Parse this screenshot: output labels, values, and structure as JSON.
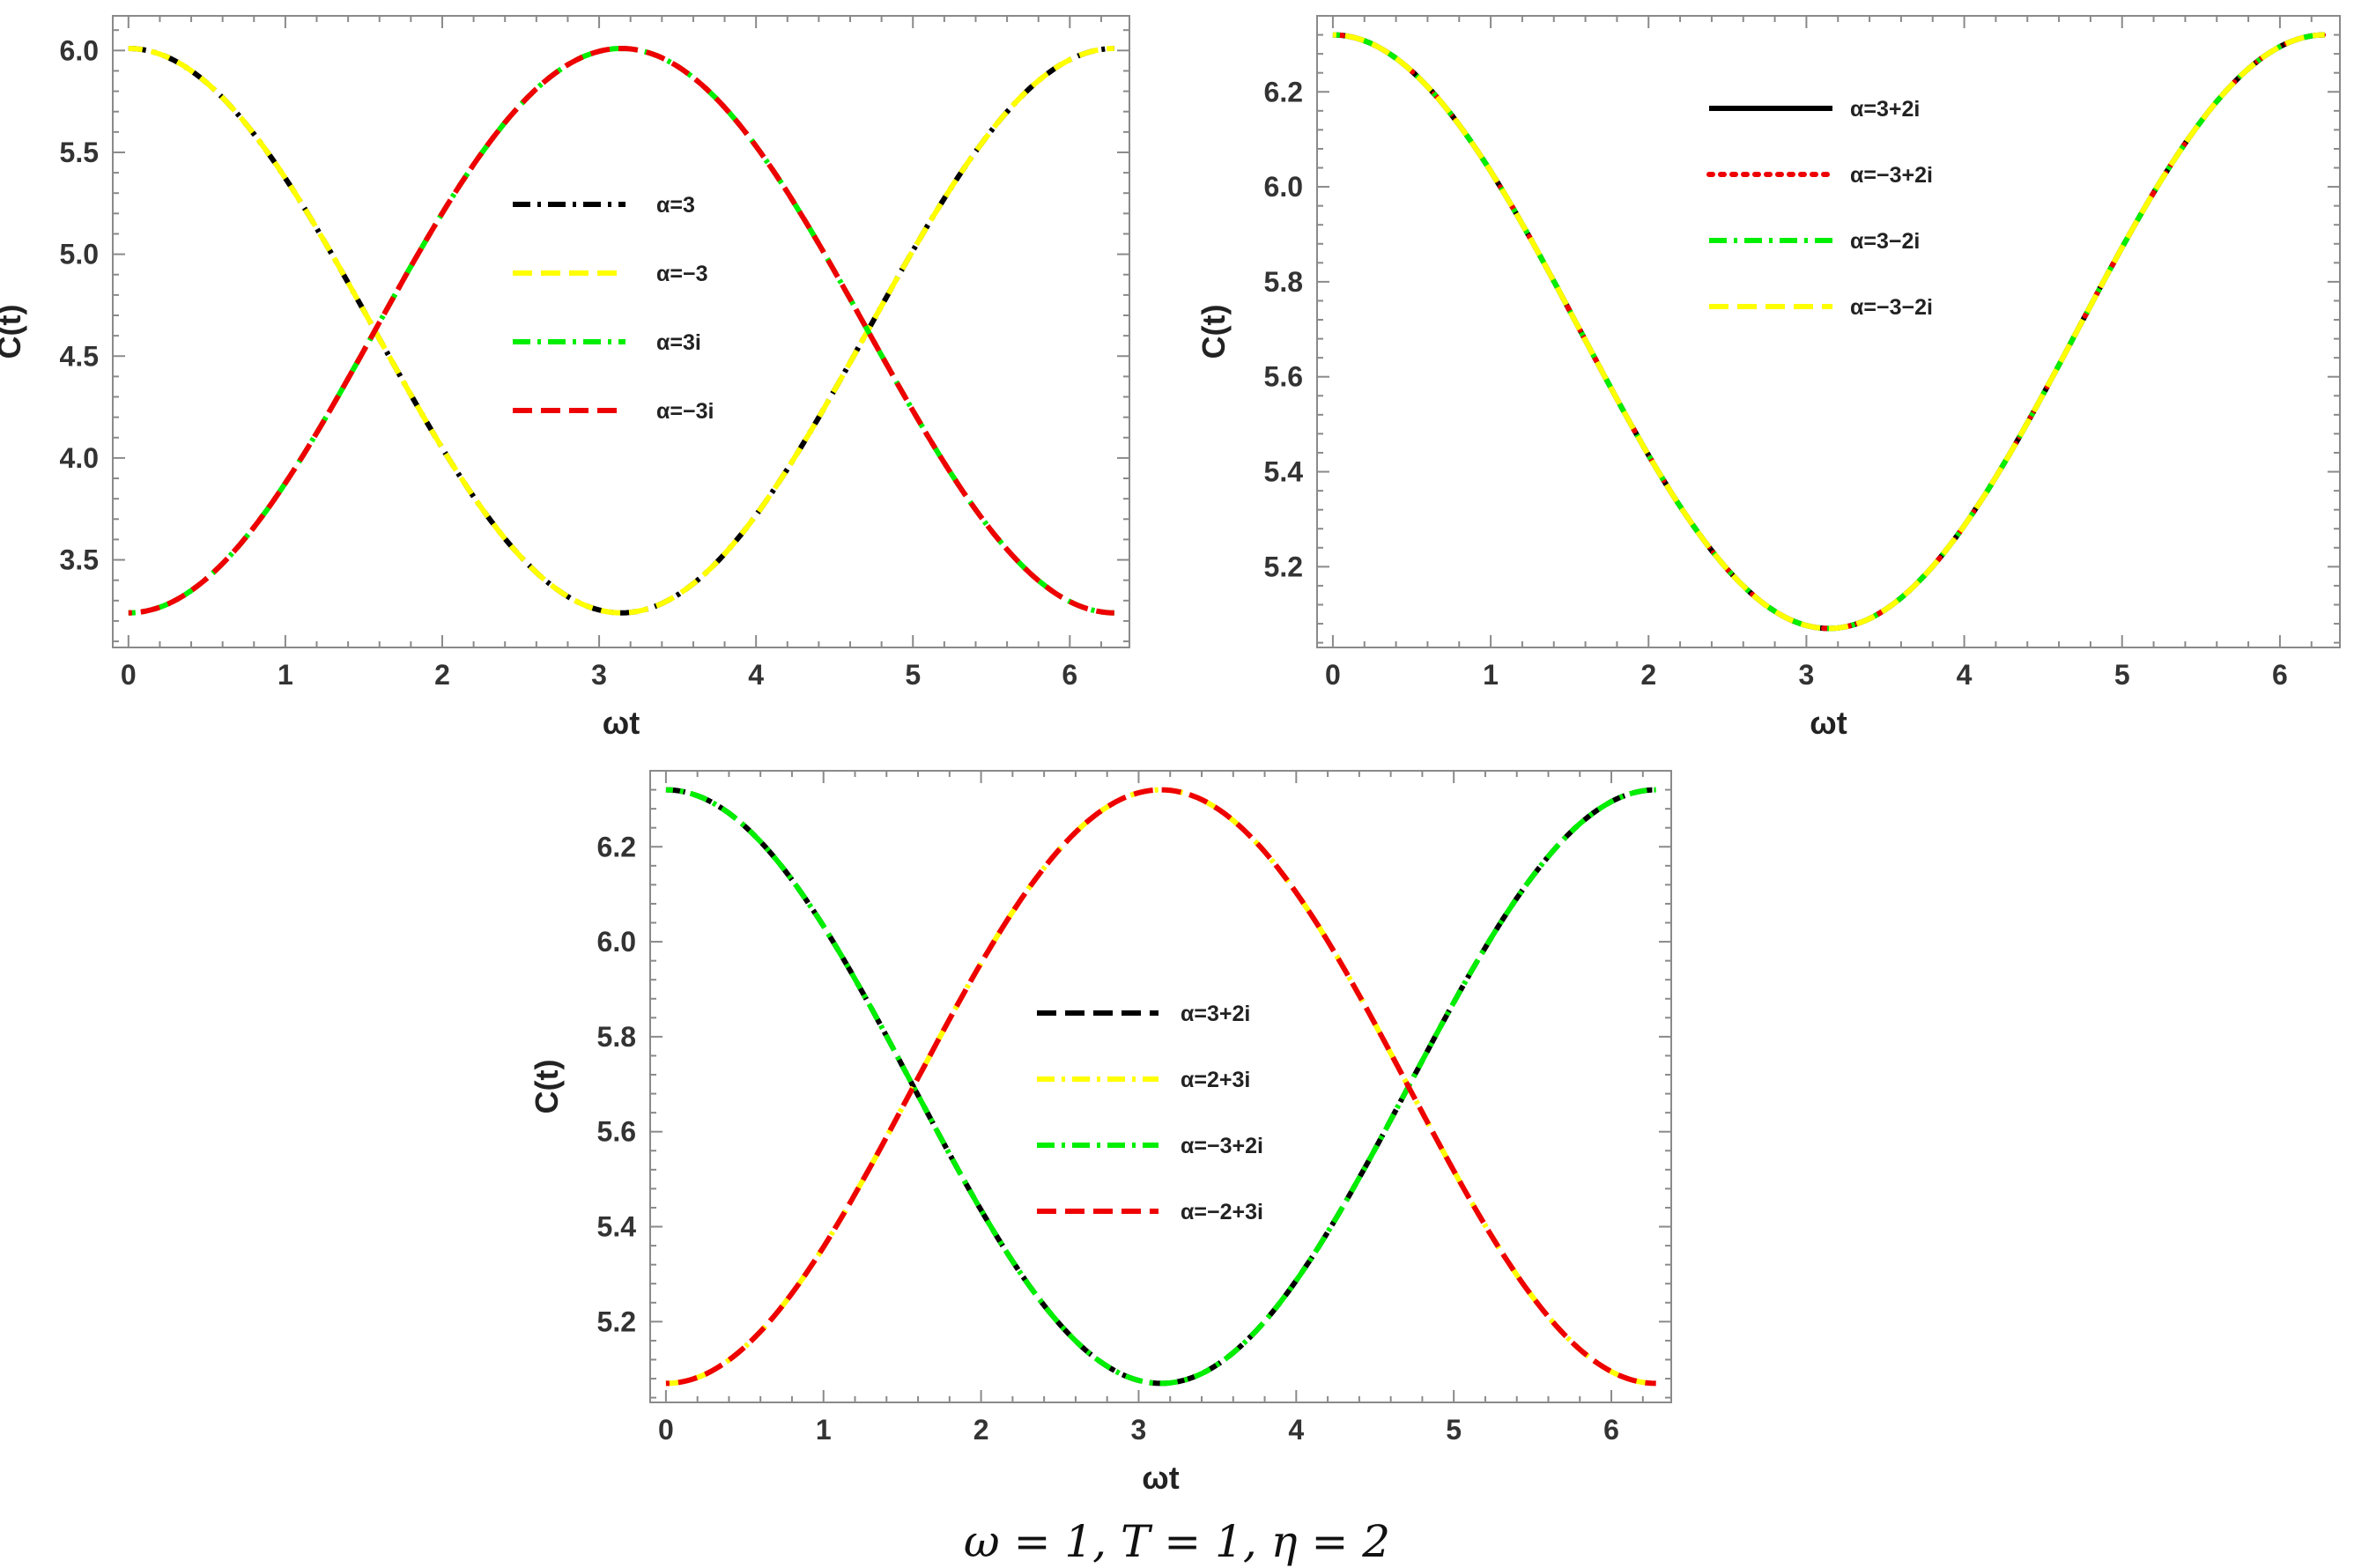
{
  "caption": "ω = 1, T = 1, η = 2",
  "chart_data": [
    {
      "type": "line",
      "title": "",
      "xlabel": "ωt",
      "ylabel": "C(t)",
      "xlim": [
        -0.1,
        6.38
      ],
      "ylim": [
        3.07,
        6.17
      ],
      "xticks": [
        0,
        1,
        2,
        3,
        4,
        5,
        6
      ],
      "yticks": [
        3.5,
        4.0,
        4.5,
        5.0,
        5.5,
        6.0
      ],
      "ytick_labels": [
        "3.5",
        "4.0",
        "4.5",
        "5.0",
        "5.5",
        "6.0"
      ],
      "legend_position": "center",
      "curve": {
        "mean": 4.625,
        "amplitude": 1.385
      },
      "series": [
        {
          "name": "α=3",
          "color": "#000000",
          "dash": "dashdot",
          "phase": "cos"
        },
        {
          "name": "α=−3",
          "color": "#ffff00",
          "dash": "dashed",
          "phase": "cos"
        },
        {
          "name": "α=3i",
          "color": "#00ee00",
          "dash": "dashdot",
          "phase": "negcos"
        },
        {
          "name": "α=−3i",
          "color": "#ee0000",
          "dash": "dashed",
          "phase": "negcos"
        }
      ]
    },
    {
      "type": "line",
      "title": "",
      "xlabel": "ωt",
      "ylabel": "C(t)",
      "xlim": [
        -0.1,
        6.38
      ],
      "ylim": [
        5.03,
        6.36
      ],
      "xticks": [
        0,
        1,
        2,
        3,
        4,
        5,
        6
      ],
      "yticks": [
        5.2,
        5.4,
        5.6,
        5.8,
        6.0,
        6.2
      ],
      "ytick_labels": [
        "5.2",
        "5.4",
        "5.6",
        "5.8",
        "6.0",
        "6.2"
      ],
      "legend_position": "top-center",
      "curve": {
        "mean": 5.695,
        "amplitude": 0.625
      },
      "series": [
        {
          "name": "α=3+2i",
          "color": "#000000",
          "dash": "solid",
          "phase": "cos"
        },
        {
          "name": "α=−3+2i",
          "color": "#ee0000",
          "dash": "dotted",
          "phase": "cos"
        },
        {
          "name": "α=3−2i",
          "color": "#00ee00",
          "dash": "dashdot",
          "phase": "cos"
        },
        {
          "name": "α=−3−2i",
          "color": "#ffff00",
          "dash": "dashed",
          "phase": "cos"
        }
      ]
    },
    {
      "type": "line",
      "title": "",
      "xlabel": "ωt",
      "ylabel": "C(t)",
      "xlim": [
        -0.1,
        6.38
      ],
      "ylim": [
        5.03,
        6.36
      ],
      "xticks": [
        0,
        1,
        2,
        3,
        4,
        5,
        6
      ],
      "yticks": [
        5.2,
        5.4,
        5.6,
        5.8,
        6.0,
        6.2
      ],
      "ytick_labels": [
        "5.2",
        "5.4",
        "5.6",
        "5.8",
        "6.0",
        "6.2"
      ],
      "legend_position": "center",
      "curve": {
        "mean": 5.695,
        "amplitude": 0.625
      },
      "series": [
        {
          "name": "α=3+2i",
          "color": "#000000",
          "dash": "dashed",
          "phase": "cos"
        },
        {
          "name": "α=2+3i",
          "color": "#ffff00",
          "dash": "dashdot",
          "phase": "negcos"
        },
        {
          "name": "α=−3+2i",
          "color": "#00ee00",
          "dash": "dashdot",
          "phase": "cos"
        },
        {
          "name": "α=−2+3i",
          "color": "#ee0000",
          "dash": "dashed",
          "phase": "negcos"
        }
      ]
    }
  ]
}
